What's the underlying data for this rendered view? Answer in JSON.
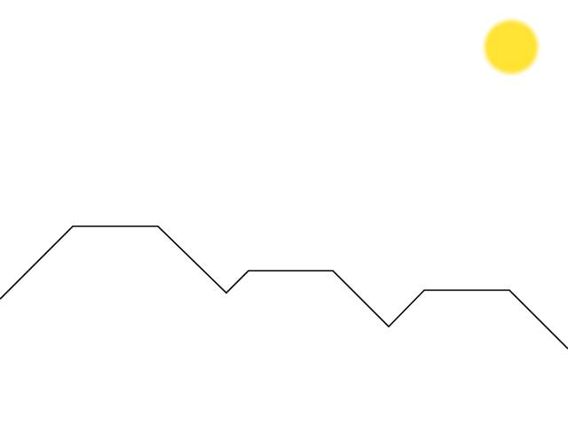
{
  "scene": {
    "background_color": "#ffffff",
    "sun": {
      "icon": "sun-icon",
      "color": "#ffe230",
      "edge_color": "#ffd21a"
    },
    "mountains": {
      "icon": "mountain-ridge-line",
      "stroke_color": "#000000"
    }
  }
}
